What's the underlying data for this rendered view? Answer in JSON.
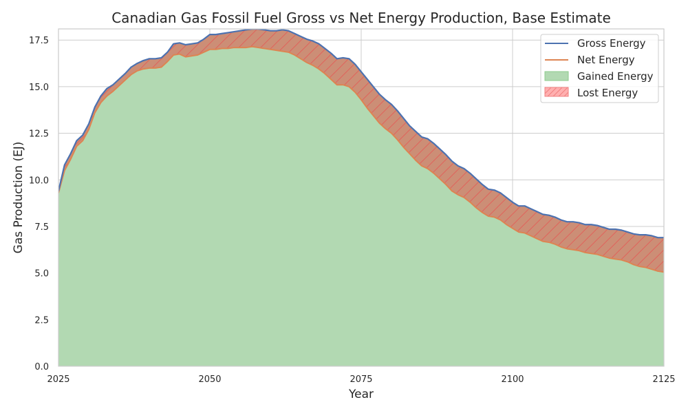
{
  "chart_data": {
    "type": "area",
    "title": "Canadian Gas Fossil Fuel Gross vs Net Energy Production, Base Estimate",
    "xlabel": "Year",
    "ylabel": "Gas Production (EJ)",
    "xlim": [
      2025,
      2125
    ],
    "ylim": [
      0,
      18.1
    ],
    "xticks": [
      2025,
      2050,
      2075,
      2100,
      2125
    ],
    "xtick_labels": [
      "2025",
      "2050",
      "2075",
      "2100",
      "2125"
    ],
    "yticks": [
      0,
      2.5,
      5,
      7.5,
      10,
      12.5,
      15,
      17.5
    ],
    "ytick_labels": [
      "0.0",
      "2.5",
      "5.0",
      "7.5",
      "10.0",
      "12.5",
      "15.0",
      "17.5"
    ],
    "grid": true,
    "legend_position": "top-right",
    "x": [
      2025,
      2026,
      2027,
      2028,
      2029,
      2030,
      2031,
      2032,
      2033,
      2034,
      2035,
      2036,
      2037,
      2038,
      2039,
      2040,
      2041,
      2042,
      2043,
      2044,
      2045,
      2046,
      2047,
      2048,
      2049,
      2050,
      2051,
      2052,
      2053,
      2054,
      2055,
      2056,
      2057,
      2058,
      2059,
      2060,
      2061,
      2062,
      2063,
      2064,
      2065,
      2066,
      2067,
      2068,
      2069,
      2070,
      2071,
      2072,
      2073,
      2074,
      2075,
      2076,
      2077,
      2078,
      2079,
      2080,
      2081,
      2082,
      2083,
      2084,
      2085,
      2086,
      2087,
      2088,
      2089,
      2090,
      2091,
      2092,
      2093,
      2094,
      2095,
      2096,
      2097,
      2098,
      2099,
      2100,
      2101,
      2102,
      2103,
      2104,
      2105,
      2106,
      2107,
      2108,
      2109,
      2110,
      2111,
      2112,
      2113,
      2114,
      2115,
      2116,
      2117,
      2118,
      2119,
      2120,
      2121,
      2122,
      2123,
      2124,
      2125
    ],
    "series": [
      {
        "name": "Gross Energy",
        "color": "#4c72b0",
        "values": [
          9.4,
          10.8,
          11.4,
          12.1,
          12.4,
          13.0,
          13.9,
          14.5,
          14.9,
          15.1,
          15.4,
          15.7,
          16.05,
          16.25,
          16.4,
          16.5,
          16.5,
          16.55,
          16.85,
          17.3,
          17.35,
          17.25,
          17.3,
          17.35,
          17.55,
          17.8,
          17.8,
          17.85,
          17.9,
          17.95,
          18.0,
          18.05,
          18.1,
          18.1,
          18.05,
          18.0,
          18.0,
          18.05,
          18.0,
          17.85,
          17.7,
          17.55,
          17.45,
          17.3,
          17.05,
          16.8,
          16.5,
          16.55,
          16.5,
          16.2,
          15.8,
          15.4,
          15.0,
          14.6,
          14.3,
          14.05,
          13.7,
          13.3,
          12.9,
          12.6,
          12.3,
          12.2,
          11.95,
          11.65,
          11.35,
          11.0,
          10.75,
          10.6,
          10.35,
          10.05,
          9.75,
          9.5,
          9.45,
          9.3,
          9.05,
          8.8,
          8.6,
          8.6,
          8.45,
          8.3,
          8.15,
          8.1,
          8.0,
          7.85,
          7.75,
          7.75,
          7.7,
          7.6,
          7.6,
          7.55,
          7.45,
          7.35,
          7.35,
          7.3,
          7.2,
          7.1,
          7.05,
          7.05,
          7.0,
          6.9,
          6.9
        ]
      },
      {
        "name": "Net Energy",
        "color": "#dd8452",
        "values": [
          9.3,
          10.5,
          11.1,
          11.8,
          12.1,
          12.7,
          13.6,
          14.15,
          14.5,
          14.75,
          15.05,
          15.35,
          15.65,
          15.85,
          15.95,
          16.0,
          16.0,
          16.05,
          16.35,
          16.7,
          16.75,
          16.6,
          16.65,
          16.7,
          16.85,
          17.0,
          17.0,
          17.05,
          17.05,
          17.1,
          17.1,
          17.1,
          17.15,
          17.1,
          17.05,
          17.0,
          16.95,
          16.9,
          16.85,
          16.7,
          16.5,
          16.3,
          16.15,
          15.95,
          15.7,
          15.4,
          15.1,
          15.1,
          15.0,
          14.7,
          14.3,
          13.85,
          13.45,
          13.05,
          12.75,
          12.5,
          12.15,
          11.75,
          11.4,
          11.05,
          10.75,
          10.6,
          10.35,
          10.05,
          9.75,
          9.4,
          9.2,
          9.05,
          8.8,
          8.5,
          8.25,
          8.05,
          8.0,
          7.85,
          7.6,
          7.4,
          7.2,
          7.15,
          7.0,
          6.85,
          6.7,
          6.65,
          6.55,
          6.4,
          6.3,
          6.25,
          6.2,
          6.1,
          6.05,
          6.0,
          5.9,
          5.8,
          5.75,
          5.7,
          5.6,
          5.45,
          5.35,
          5.3,
          5.2,
          5.1,
          5.05
        ]
      }
    ],
    "fills": [
      {
        "name": "Gained Energy",
        "between": [
          "zero",
          "Net Energy"
        ],
        "color": "#b2d9b2",
        "edge": "#8ccc8c"
      },
      {
        "name": "Lost Energy",
        "between": [
          "Net Energy",
          "Gross Energy"
        ],
        "color": "#cc8e76",
        "hatch_color": "#e0635b",
        "legend_color": "#ffb0b0",
        "edge": "#f08080"
      }
    ],
    "legend": [
      "Gross Energy",
      "Net Energy",
      "Gained Energy",
      "Lost Energy"
    ]
  }
}
